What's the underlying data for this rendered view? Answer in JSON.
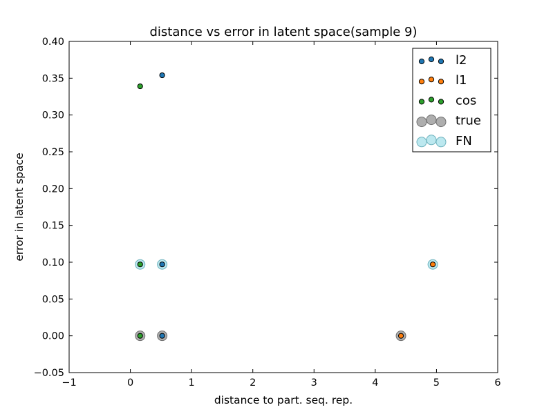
{
  "chart_data": {
    "type": "scatter",
    "title": "distance vs error in latent space(sample 9)",
    "xlabel": "distance to part. seq. rep.",
    "ylabel": "error in latent space",
    "xlim": [
      -1,
      6
    ],
    "ylim": [
      -0.05,
      0.4
    ],
    "x_ticks": [
      -1,
      0,
      1,
      2,
      3,
      4,
      5,
      6
    ],
    "x_tick_labels": [
      "−1",
      "0",
      "1",
      "2",
      "3",
      "4",
      "5",
      "6"
    ],
    "y_ticks": [
      -0.05,
      0.0,
      0.05,
      0.1,
      0.15,
      0.2,
      0.25,
      0.3,
      0.35,
      0.4
    ],
    "y_tick_labels": [
      "−0.05",
      "0.00",
      "0.05",
      "0.10",
      "0.15",
      "0.20",
      "0.25",
      "0.30",
      "0.35",
      "0.40"
    ],
    "grid": false,
    "legend_position": "top-right",
    "series": [
      {
        "name": "true",
        "marker": "large",
        "color": "#a0a0a0",
        "edge": "#707070",
        "opacity": 0.85,
        "points": [
          [
            0.16,
            0.0
          ],
          [
            0.52,
            0.0
          ],
          [
            4.42,
            0.0
          ]
        ]
      },
      {
        "name": "FN",
        "marker": "large",
        "color": "#b0e4ec",
        "edge": "#6fb3be",
        "opacity": 0.85,
        "points": [
          [
            0.16,
            0.097
          ],
          [
            0.52,
            0.097
          ],
          [
            4.94,
            0.097
          ]
        ]
      },
      {
        "name": "l2",
        "marker": "small",
        "color": "#1f77b4",
        "edge": "#000000",
        "points": [
          [
            0.52,
            0.354
          ],
          [
            0.52,
            0.097
          ],
          [
            0.52,
            0.0
          ]
        ]
      },
      {
        "name": "l1",
        "marker": "small",
        "color": "#ff7f0e",
        "edge": "#000000",
        "points": [
          [
            4.94,
            0.097
          ],
          [
            4.42,
            0.0
          ]
        ]
      },
      {
        "name": "cos",
        "marker": "small",
        "color": "#2ca02c",
        "edge": "#000000",
        "points": [
          [
            0.16,
            0.339
          ],
          [
            0.16,
            0.097
          ],
          [
            0.16,
            0.0
          ]
        ]
      }
    ],
    "legend_order": [
      "l2",
      "l1",
      "cos",
      "true",
      "FN"
    ]
  }
}
